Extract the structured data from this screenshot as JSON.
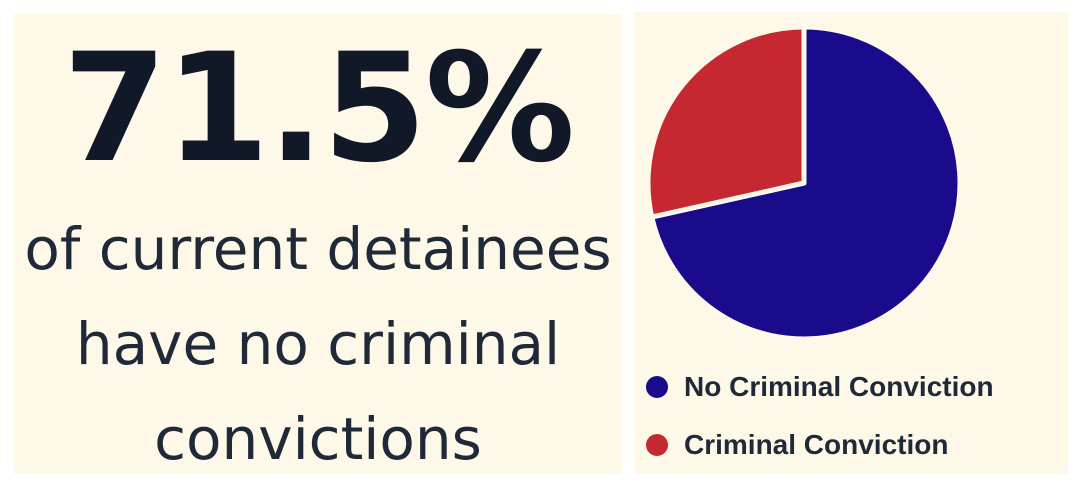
{
  "headline": {
    "stat": "71.5%",
    "lines": [
      "of current detainees",
      "have no criminal",
      "convictions"
    ]
  },
  "chart_data": {
    "type": "pie",
    "categories": [
      "No Criminal Conviction",
      "Criminal Conviction"
    ],
    "values": [
      71.5,
      28.5
    ],
    "colors": [
      "#1a0a8c",
      "#c62832"
    ],
    "legend": "bottom-left"
  }
}
